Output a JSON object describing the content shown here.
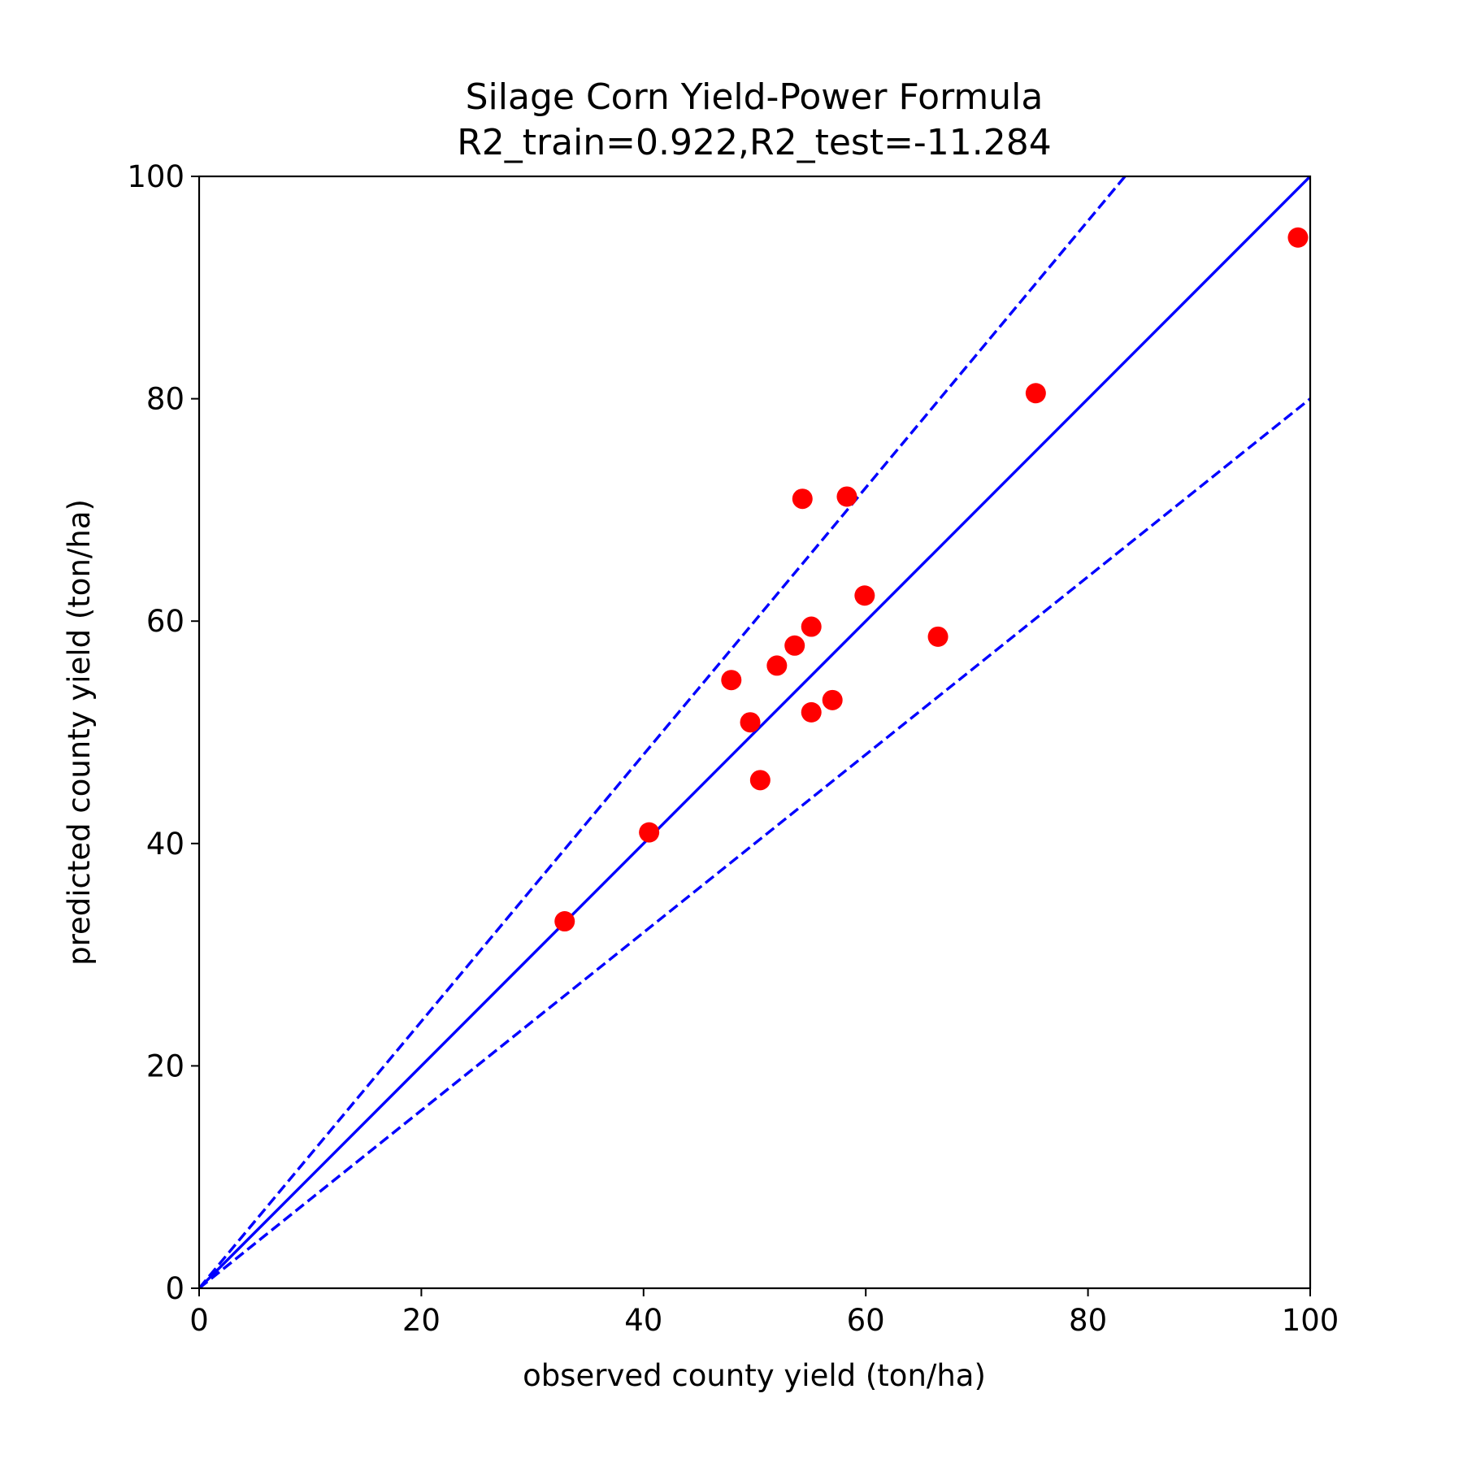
{
  "chart_data": {
    "type": "scatter",
    "title_lines": [
      "Silage Corn Yield-Power Formula",
      "R2_train=0.922,R2_test=-11.284"
    ],
    "xlabel": "observed county yield (ton/ha)",
    "ylabel": "predicted county yield (ton/ha)",
    "xlim": [
      0,
      100
    ],
    "ylim": [
      0,
      100
    ],
    "xticks": [
      0,
      20,
      40,
      60,
      80,
      100
    ],
    "yticks": [
      0,
      20,
      40,
      60,
      80,
      100
    ],
    "grid": false,
    "reference_lines": [
      {
        "slope": 1.0,
        "style": "solid",
        "color": "#0000ff"
      },
      {
        "slope": 1.2,
        "style": "dashed",
        "color": "#0000ff"
      },
      {
        "slope": 0.8,
        "style": "dashed",
        "color": "#0000ff"
      }
    ],
    "points_color": "#ff0000",
    "points": [
      {
        "x": 32.9,
        "y": 33.0
      },
      {
        "x": 40.5,
        "y": 41.0
      },
      {
        "x": 47.9,
        "y": 54.7
      },
      {
        "x": 49.6,
        "y": 50.9
      },
      {
        "x": 50.5,
        "y": 45.7
      },
      {
        "x": 52.0,
        "y": 56.0
      },
      {
        "x": 53.6,
        "y": 57.8
      },
      {
        "x": 54.3,
        "y": 71.0
      },
      {
        "x": 55.1,
        "y": 59.5
      },
      {
        "x": 55.1,
        "y": 51.8
      },
      {
        "x": 57.0,
        "y": 52.9
      },
      {
        "x": 58.3,
        "y": 71.2
      },
      {
        "x": 59.9,
        "y": 62.3
      },
      {
        "x": 66.5,
        "y": 58.6
      },
      {
        "x": 75.3,
        "y": 80.5
      },
      {
        "x": 98.9,
        "y": 94.5
      }
    ]
  }
}
